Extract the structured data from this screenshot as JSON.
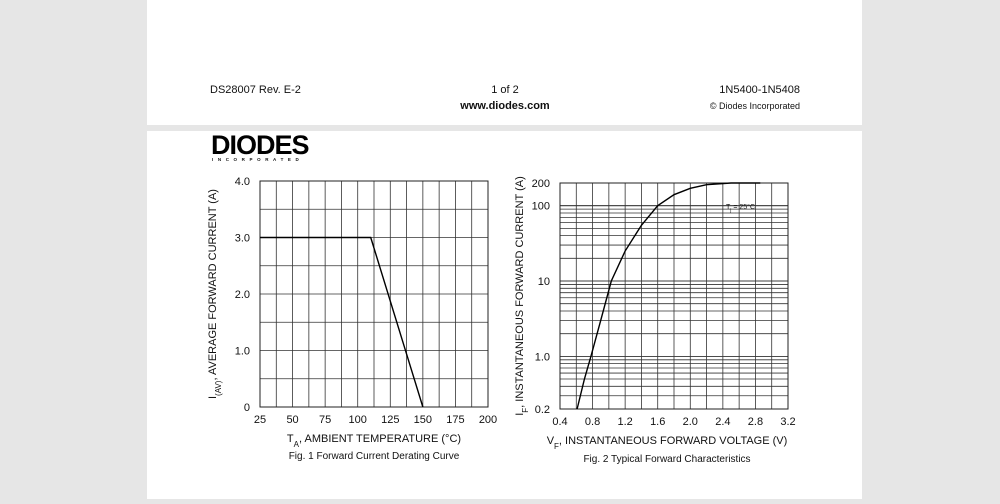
{
  "footer": {
    "doc_id": "DS28007 Rev. E-2",
    "page": "1 of 2",
    "url": "www.diodes.com",
    "part": "1N5400-1N5408",
    "copyright": "© Diodes Incorporated"
  },
  "logo": {
    "name": "DIODES",
    "sub": "INCORPORATED"
  },
  "chart_data": [
    {
      "type": "line",
      "color": "#000000",
      "ylabel": {
        "symbol": "I",
        "subscript": "(AV)",
        "text": ", AVERAGE FORWARD CURRENT (A)"
      },
      "xlabel": {
        "symbol": "T",
        "subscript": "A",
        "text": ", AMBIENT TEMPERATURE (°C)"
      },
      "caption": "Fig. 1  Forward Current Derating Curve",
      "x": [
        25,
        110,
        150
      ],
      "values": [
        3.0,
        3.0,
        0
      ],
      "xlim": [
        25,
        200
      ],
      "xticks": [
        25,
        50,
        75,
        100,
        125,
        150,
        175,
        200
      ],
      "ylim": [
        0,
        4
      ],
      "yticks": [
        0,
        {
          "value": 1,
          "label": "1.0"
        },
        {
          "value": 2,
          "label": "2.0"
        },
        {
          "value": 3,
          "label": "3.0"
        },
        {
          "value": 4,
          "label": "4.0"
        }
      ],
      "grid": true,
      "log_y": false
    },
    {
      "type": "line",
      "color": "#000000",
      "ylabel": {
        "symbol": "I",
        "subscript": "F",
        "text": ", INSTANTANEOUS FORWARD CURRENT (A)"
      },
      "xlabel": {
        "symbol": "V",
        "subscript": "F",
        "text": ", INSTANTANEOUS FORWARD VOLTAGE (V)"
      },
      "caption": "Fig. 2  Typical Forward Characteristics",
      "annotation": {
        "symbol": "T",
        "subscript": "j",
        "text": " = 25°C"
      },
      "x": [
        0.61,
        0.7,
        0.78,
        0.9,
        1.03,
        1.2,
        1.4,
        1.6,
        1.8,
        2.0,
        2.2,
        2.5,
        2.86
      ],
      "values": [
        0.2,
        0.5,
        1.0,
        3,
        10,
        25,
        55,
        100,
        140,
        170,
        190,
        200,
        200
      ],
      "xlim": [
        0.4,
        3.2
      ],
      "xticks": [
        0.4,
        0.8,
        1.2,
        1.6,
        {
          "value": 2,
          "label": "2.0"
        },
        2.4,
        2.8,
        3.2
      ],
      "ylim": [
        0.2,
        200
      ],
      "yticks": [
        0.2,
        {
          "value": 1,
          "label": "1.0"
        },
        10,
        100,
        200
      ],
      "grid": true,
      "log_y": true
    }
  ]
}
